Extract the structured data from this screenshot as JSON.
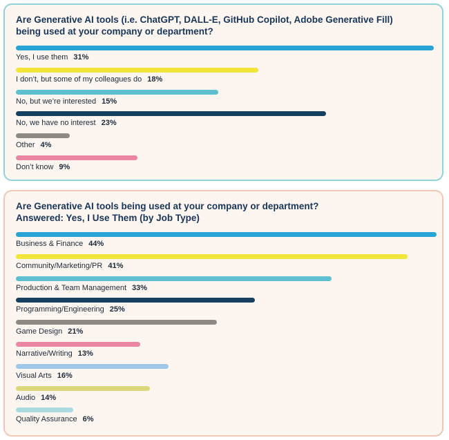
{
  "charts": [
    {
      "type": "bar",
      "title_line1": "Are Generative AI tools (i.e. ChatGPT, DALL-E, GitHub Copilot, Adobe Generative Fill)",
      "title_line2": "being used at your company or department?",
      "max_value": 31,
      "items": [
        {
          "label": "Yes, I use them",
          "value": 31,
          "value_label": "31%",
          "color": "#2aa3d6"
        },
        {
          "label": "I don’t, but some of my colleagues do",
          "value": 18,
          "value_label": "18%",
          "color": "#f2e63a"
        },
        {
          "label": "No, but we’re interested",
          "value": 15,
          "value_label": "15%",
          "color": "#5dbfd0"
        },
        {
          "label": "No, we have no interest",
          "value": 23,
          "value_label": "23%",
          "color": "#16405f"
        },
        {
          "label": "Other",
          "value": 4,
          "value_label": "4%",
          "color": "#8c8a82"
        },
        {
          "label": "Don’t know",
          "value": 9,
          "value_label": "9%",
          "color": "#ea86a4"
        }
      ]
    },
    {
      "type": "bar",
      "title_line1": "Are Generative AI tools being used at your company or department?",
      "title_line2": "Answered: Yes, I Use Them (by Job Type)",
      "max_value": 44,
      "items": [
        {
          "label": "Business & Finance",
          "value": 44,
          "value_label": "44%",
          "color": "#2aa3d6"
        },
        {
          "label": "Community/Marketing/PR",
          "value": 41,
          "value_label": "41%",
          "color": "#f2e63a"
        },
        {
          "label": "Production & Team Management",
          "value": 33,
          "value_label": "33%",
          "color": "#5dbfd0"
        },
        {
          "label": "Programming/Engineering",
          "value": 25,
          "value_label": "25%",
          "color": "#16405f"
        },
        {
          "label": "Game Design",
          "value": 21,
          "value_label": "21%",
          "color": "#8c8a82"
        },
        {
          "label": "Narrative/Writing",
          "value": 13,
          "value_label": "13%",
          "color": "#ea86a4"
        },
        {
          "label": "Visual Arts",
          "value": 16,
          "value_label": "16%",
          "color": "#9fc8e8"
        },
        {
          "label": "Audio",
          "value": 14,
          "value_label": "14%",
          "color": "#dcd77a"
        },
        {
          "label": "Quality Assurance",
          "value": 6,
          "value_label": "6%",
          "color": "#a9dbe0"
        }
      ]
    }
  ]
}
